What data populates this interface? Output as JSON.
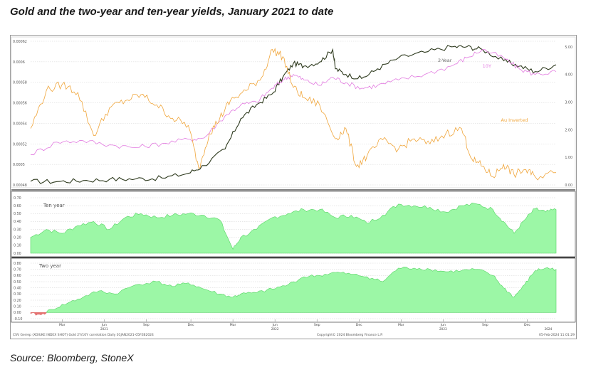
{
  "title": "Gold and the two-year and ten-year yields, January 2021 to date",
  "source": "Source: Bloomberg, StoneX",
  "footer": {
    "left": "CSV Gerrep (XOIUKE INDEX SHOT) Gold 2Y/10Y correlation Daily 01JAN2021-05FEB2024",
    "center": "Copyright© 2024 Bloomberg Finance L.P.",
    "right": "05-Feb-2024 11:01:29"
  },
  "colors": {
    "gold": "#f0a53a",
    "two_year": "#2e3a1e",
    "ten_year": "#e27ae0",
    "corr_fill": "#9cf7a6",
    "corr_line": "#55d463",
    "negative": "#e57373"
  },
  "chart_data": [
    {
      "type": "line",
      "panel": "top",
      "x_ticks": [
        "Mar",
        "Jun",
        "Sep",
        "Dec",
        "Mar",
        "Jun",
        "Sep",
        "Dec",
        "Mar",
        "Jun",
        "Sep",
        "Dec"
      ],
      "year_labels": [
        "2021",
        "2022",
        "2023",
        "2024"
      ],
      "left_axis": {
        "ticks": [
          "0.00062",
          "0.0006",
          "0.00058",
          "0.00056",
          "0.00054",
          "0.00052",
          "0.0005",
          "0.00048"
        ],
        "ylim": [
          0.00048,
          0.00062
        ]
      },
      "right_axis": {
        "ticks": [
          "5.00",
          "4.00",
          "3.00",
          "2.00",
          "1.00",
          "0.00"
        ],
        "ylim": [
          0,
          5.2
        ]
      },
      "series": [
        {
          "name": "2-Year",
          "axis": "right",
          "color": "#2e3a1e",
          "points": [
            [
              0,
              0.13
            ],
            [
              0.05,
              0.12
            ],
            [
              0.1,
              0.16
            ],
            [
              0.15,
              0.2
            ],
            [
              0.2,
              0.22
            ],
            [
              0.25,
              0.25
            ],
            [
              0.3,
              0.42
            ],
            [
              0.33,
              0.7
            ],
            [
              0.37,
              1.3
            ],
            [
              0.4,
              2.4
            ],
            [
              0.43,
              2.9
            ],
            [
              0.46,
              3.3
            ],
            [
              0.48,
              3.9
            ],
            [
              0.5,
              4.4
            ],
            [
              0.52,
              4.3
            ],
            [
              0.55,
              4.45
            ],
            [
              0.575,
              4.9
            ],
            [
              0.58,
              4.2
            ],
            [
              0.6,
              4.0
            ],
            [
              0.63,
              3.85
            ],
            [
              0.66,
              4.2
            ],
            [
              0.7,
              4.6
            ],
            [
              0.75,
              4.8
            ],
            [
              0.8,
              5.0
            ],
            [
              0.83,
              5.0
            ],
            [
              0.86,
              4.9
            ],
            [
              0.9,
              4.5
            ],
            [
              0.93,
              4.3
            ],
            [
              0.96,
              4.1
            ],
            [
              1.0,
              4.35
            ]
          ]
        },
        {
          "name": "10Y",
          "axis": "right",
          "color": "#e27ae0",
          "points": [
            [
              0,
              1.1
            ],
            [
              0.05,
              1.55
            ],
            [
              0.1,
              1.6
            ],
            [
              0.15,
              1.45
            ],
            [
              0.2,
              1.35
            ],
            [
              0.25,
              1.5
            ],
            [
              0.3,
              1.65
            ],
            [
              0.33,
              1.7
            ],
            [
              0.37,
              2.5
            ],
            [
              0.4,
              2.9
            ],
            [
              0.43,
              3.0
            ],
            [
              0.46,
              3.5
            ],
            [
              0.48,
              3.8
            ],
            [
              0.5,
              4.0
            ],
            [
              0.52,
              3.8
            ],
            [
              0.55,
              3.6
            ],
            [
              0.575,
              3.9
            ],
            [
              0.6,
              3.7
            ],
            [
              0.63,
              3.5
            ],
            [
              0.66,
              3.6
            ],
            [
              0.7,
              3.8
            ],
            [
              0.75,
              4.0
            ],
            [
              0.8,
              4.3
            ],
            [
              0.83,
              4.6
            ],
            [
              0.86,
              4.9
            ],
            [
              0.9,
              4.6
            ],
            [
              0.93,
              4.2
            ],
            [
              0.96,
              4.0
            ],
            [
              1.0,
              4.1
            ]
          ]
        },
        {
          "name": "Au Inverted",
          "axis": "left",
          "color": "#f0a53a",
          "points": [
            [
              0,
              0.000535
            ],
            [
              0.03,
              0.000572
            ],
            [
              0.06,
              0.000578
            ],
            [
              0.09,
              0.00057
            ],
            [
              0.12,
              0.000528
            ],
            [
              0.15,
              0.000555
            ],
            [
              0.18,
              0.000562
            ],
            [
              0.21,
              0.000568
            ],
            [
              0.24,
              0.000558
            ],
            [
              0.27,
              0.000545
            ],
            [
              0.3,
              0.000538
            ],
            [
              0.32,
              0.000496
            ],
            [
              0.34,
              0.00053
            ],
            [
              0.36,
              0.000545
            ],
            [
              0.38,
              0.000562
            ],
            [
              0.41,
              0.000572
            ],
            [
              0.44,
              0.000585
            ],
            [
              0.46,
              0.000612
            ],
            [
              0.48,
              0.000605
            ],
            [
              0.5,
              0.000575
            ],
            [
              0.52,
              0.000565
            ],
            [
              0.55,
              0.000558
            ],
            [
              0.58,
              0.000525
            ],
            [
              0.6,
              0.000535
            ],
            [
              0.62,
              0.000498
            ],
            [
              0.64,
              0.000508
            ],
            [
              0.67,
              0.000524
            ],
            [
              0.7,
              0.000515
            ],
            [
              0.73,
              0.000525
            ],
            [
              0.76,
              0.00052
            ],
            [
              0.79,
              0.00053
            ],
            [
              0.82,
              0.000535
            ],
            [
              0.84,
              0.000505
            ],
            [
              0.86,
              0.000498
            ],
            [
              0.88,
              0.000488
            ],
            [
              0.9,
              0.0005
            ],
            [
              0.92,
              0.00049
            ],
            [
              0.94,
              0.000495
            ],
            [
              0.96,
              0.000488
            ],
            [
              1.0,
              0.000492
            ]
          ]
        }
      ],
      "annotations": [
        "2-Year",
        "10Y",
        "Au Inverted"
      ]
    },
    {
      "type": "area",
      "panel": "middle",
      "label": "Ten year",
      "y_ticks": [
        "0.70",
        "0.60",
        "0.50",
        "0.40",
        "0.30",
        "0.20",
        "0.10",
        "0.00"
      ],
      "ylim": [
        0,
        0.7
      ],
      "points": [
        [
          0,
          0.2
        ],
        [
          0.03,
          0.3
        ],
        [
          0.06,
          0.25
        ],
        [
          0.09,
          0.35
        ],
        [
          0.12,
          0.4
        ],
        [
          0.15,
          0.3
        ],
        [
          0.18,
          0.45
        ],
        [
          0.21,
          0.5
        ],
        [
          0.24,
          0.45
        ],
        [
          0.27,
          0.48
        ],
        [
          0.3,
          0.5
        ],
        [
          0.33,
          0.48
        ],
        [
          0.36,
          0.42
        ],
        [
          0.385,
          0.05
        ],
        [
          0.4,
          0.2
        ],
        [
          0.43,
          0.3
        ],
        [
          0.46,
          0.45
        ],
        [
          0.49,
          0.5
        ],
        [
          0.52,
          0.55
        ],
        [
          0.55,
          0.55
        ],
        [
          0.58,
          0.45
        ],
        [
          0.61,
          0.48
        ],
        [
          0.64,
          0.38
        ],
        [
          0.67,
          0.48
        ],
        [
          0.7,
          0.62
        ],
        [
          0.73,
          0.6
        ],
        [
          0.76,
          0.58
        ],
        [
          0.79,
          0.52
        ],
        [
          0.82,
          0.6
        ],
        [
          0.85,
          0.62
        ],
        [
          0.88,
          0.55
        ],
        [
          0.9,
          0.4
        ],
        [
          0.92,
          0.25
        ],
        [
          0.94,
          0.42
        ],
        [
          0.96,
          0.56
        ],
        [
          0.98,
          0.52
        ],
        [
          1.0,
          0.55
        ]
      ]
    },
    {
      "type": "area",
      "panel": "bottom",
      "label": "Two year",
      "y_ticks": [
        "0.80",
        "0.70",
        "0.60",
        "0.50",
        "0.40",
        "0.30",
        "0.20",
        "0.10",
        "0.00",
        "-0.10"
      ],
      "ylim": [
        -0.1,
        0.8
      ],
      "points": [
        [
          0,
          -0.02
        ],
        [
          0.02,
          -0.04
        ],
        [
          0.04,
          0.05
        ],
        [
          0.07,
          0.15
        ],
        [
          0.1,
          0.25
        ],
        [
          0.13,
          0.35
        ],
        [
          0.16,
          0.3
        ],
        [
          0.2,
          0.45
        ],
        [
          0.24,
          0.5
        ],
        [
          0.27,
          0.42
        ],
        [
          0.3,
          0.48
        ],
        [
          0.33,
          0.38
        ],
        [
          0.36,
          0.3
        ],
        [
          0.385,
          0.25
        ],
        [
          0.4,
          0.3
        ],
        [
          0.43,
          0.32
        ],
        [
          0.46,
          0.38
        ],
        [
          0.49,
          0.45
        ],
        [
          0.52,
          0.58
        ],
        [
          0.55,
          0.6
        ],
        [
          0.58,
          0.65
        ],
        [
          0.61,
          0.62
        ],
        [
          0.64,
          0.58
        ],
        [
          0.67,
          0.5
        ],
        [
          0.7,
          0.72
        ],
        [
          0.73,
          0.72
        ],
        [
          0.76,
          0.7
        ],
        [
          0.79,
          0.66
        ],
        [
          0.82,
          0.68
        ],
        [
          0.85,
          0.7
        ],
        [
          0.88,
          0.6
        ],
        [
          0.9,
          0.4
        ],
        [
          0.92,
          0.25
        ],
        [
          0.94,
          0.45
        ],
        [
          0.96,
          0.68
        ],
        [
          0.98,
          0.72
        ],
        [
          1.0,
          0.7
        ]
      ]
    }
  ]
}
